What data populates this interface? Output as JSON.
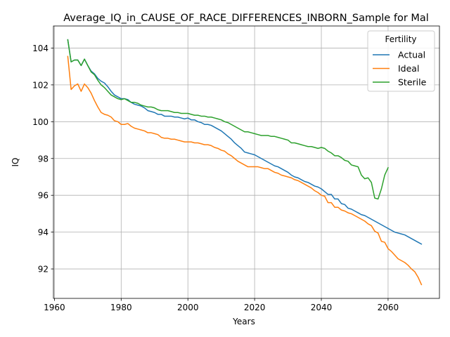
{
  "chart_data": {
    "type": "line",
    "title": "Average_IQ_in_CAUSE_OF_RACE_DIFFERENCES_INBORN_Sample for Mal",
    "xlabel": "Years",
    "ylabel": "IQ",
    "xlim": [
      1959.7,
      2075.4
    ],
    "ylim": [
      90.4,
      105.2
    ],
    "xticks": [
      1960,
      1980,
      2000,
      2020,
      2040,
      2060
    ],
    "yticks": [
      92,
      94,
      96,
      98,
      100,
      102,
      104
    ],
    "grid": true,
    "legend": {
      "title": "Fertility",
      "placement": "top-right"
    },
    "series": [
      {
        "name": "Actual",
        "color": "#1f77b4",
        "x": [
          1964,
          1965,
          1966,
          1967,
          1968,
          1969,
          1970,
          1971,
          1972,
          1973,
          1974,
          1975,
          1976,
          1977,
          1978,
          1979,
          1980,
          1981,
          1982,
          1983,
          1984,
          1985,
          1986,
          1987,
          1988,
          1989,
          1990,
          1991,
          1992,
          1993,
          1994,
          1995,
          1996,
          1997,
          1998,
          1999,
          2000,
          2001,
          2002,
          2003,
          2004,
          2005,
          2006,
          2007,
          2008,
          2009,
          2010,
          2011,
          2012,
          2013,
          2014,
          2015,
          2016,
          2017,
          2018,
          2019,
          2020,
          2021,
          2022,
          2023,
          2024,
          2025,
          2026,
          2027,
          2028,
          2029,
          2030,
          2031,
          2032,
          2033,
          2034,
          2035,
          2036,
          2037,
          2038,
          2039,
          2040,
          2041,
          2042,
          2043,
          2044,
          2045,
          2046,
          2047,
          2048,
          2049,
          2050,
          2051,
          2052,
          2053,
          2054,
          2055,
          2056,
          2057,
          2058,
          2059,
          2060,
          2061,
          2062,
          2063,
          2064,
          2065,
          2066,
          2067,
          2068,
          2069,
          2070
        ],
        "values": [
          104.45,
          103.25,
          103.35,
          103.35,
          103.05,
          103.4,
          103.05,
          102.75,
          102.6,
          102.35,
          102.2,
          102.1,
          101.9,
          101.65,
          101.45,
          101.35,
          101.25,
          101.25,
          101.2,
          101.05,
          100.95,
          100.9,
          100.85,
          100.75,
          100.6,
          100.55,
          100.5,
          100.4,
          100.4,
          100.3,
          100.3,
          100.3,
          100.25,
          100.25,
          100.2,
          100.15,
          100.2,
          100.1,
          100.1,
          100.0,
          99.95,
          99.85,
          99.85,
          99.8,
          99.7,
          99.6,
          99.5,
          99.35,
          99.2,
          99.05,
          98.85,
          98.7,
          98.55,
          98.35,
          98.3,
          98.25,
          98.2,
          98.1,
          98.0,
          97.9,
          97.8,
          97.7,
          97.6,
          97.55,
          97.45,
          97.35,
          97.25,
          97.1,
          97.0,
          96.95,
          96.85,
          96.75,
          96.7,
          96.6,
          96.5,
          96.45,
          96.35,
          96.2,
          96.05,
          96.05,
          95.8,
          95.8,
          95.55,
          95.5,
          95.3,
          95.25,
          95.15,
          95.05,
          94.95,
          94.9,
          94.8,
          94.7,
          94.6,
          94.5,
          94.4,
          94.3,
          94.2,
          94.1,
          94.0,
          93.95,
          93.9,
          93.85,
          93.75,
          93.65,
          93.55,
          93.45,
          93.35
        ]
      },
      {
        "name": "Ideal",
        "color": "#ff7f0e",
        "x": [
          1964,
          1965,
          1966,
          1967,
          1968,
          1969,
          1970,
          1971,
          1972,
          1973,
          1974,
          1975,
          1976,
          1977,
          1978,
          1979,
          1980,
          1981,
          1982,
          1983,
          1984,
          1985,
          1986,
          1987,
          1988,
          1989,
          1990,
          1991,
          1992,
          1993,
          1994,
          1995,
          1996,
          1997,
          1998,
          1999,
          2000,
          2001,
          2002,
          2003,
          2004,
          2005,
          2006,
          2007,
          2008,
          2009,
          2010,
          2011,
          2012,
          2013,
          2014,
          2015,
          2016,
          2017,
          2018,
          2019,
          2020,
          2021,
          2022,
          2023,
          2024,
          2025,
          2026,
          2027,
          2028,
          2029,
          2030,
          2031,
          2032,
          2033,
          2034,
          2035,
          2036,
          2037,
          2038,
          2039,
          2040,
          2041,
          2042,
          2043,
          2044,
          2045,
          2046,
          2047,
          2048,
          2049,
          2050,
          2051,
          2052,
          2053,
          2054,
          2055,
          2056,
          2057,
          2058,
          2059,
          2060,
          2061,
          2062,
          2063,
          2064,
          2065,
          2066,
          2067,
          2068,
          2069,
          2070
        ],
        "values": [
          103.55,
          101.75,
          101.95,
          102.05,
          101.65,
          102.05,
          101.85,
          101.55,
          101.15,
          100.8,
          100.5,
          100.4,
          100.35,
          100.25,
          100.05,
          100.0,
          99.85,
          99.85,
          99.9,
          99.75,
          99.65,
          99.6,
          99.55,
          99.5,
          99.4,
          99.4,
          99.35,
          99.3,
          99.15,
          99.1,
          99.1,
          99.05,
          99.05,
          99.0,
          98.95,
          98.9,
          98.9,
          98.9,
          98.85,
          98.85,
          98.8,
          98.75,
          98.75,
          98.7,
          98.6,
          98.55,
          98.45,
          98.4,
          98.25,
          98.15,
          98.0,
          97.85,
          97.75,
          97.65,
          97.55,
          97.55,
          97.55,
          97.55,
          97.5,
          97.45,
          97.45,
          97.35,
          97.25,
          97.2,
          97.1,
          97.05,
          97.0,
          96.95,
          96.85,
          96.8,
          96.7,
          96.6,
          96.5,
          96.4,
          96.25,
          96.15,
          96.0,
          95.95,
          95.6,
          95.6,
          95.35,
          95.35,
          95.2,
          95.15,
          95.05,
          95.0,
          94.9,
          94.8,
          94.7,
          94.6,
          94.45,
          94.35,
          94.05,
          93.95,
          93.5,
          93.45,
          93.1,
          92.95,
          92.75,
          92.55,
          92.45,
          92.35,
          92.2,
          92.0,
          91.85,
          91.55,
          91.15
        ]
      },
      {
        "name": "Sterile",
        "color": "#2ca02c",
        "x": [
          1964,
          1965,
          1966,
          1967,
          1968,
          1969,
          1970,
          1971,
          1972,
          1973,
          1974,
          1975,
          1976,
          1977,
          1978,
          1979,
          1980,
          1981,
          1982,
          1983,
          1984,
          1985,
          1986,
          1987,
          1988,
          1989,
          1990,
          1991,
          1992,
          1993,
          1994,
          1995,
          1996,
          1997,
          1998,
          1999,
          2000,
          2001,
          2002,
          2003,
          2004,
          2005,
          2006,
          2007,
          2008,
          2009,
          2010,
          2011,
          2012,
          2013,
          2014,
          2015,
          2016,
          2017,
          2018,
          2019,
          2020,
          2021,
          2022,
          2023,
          2024,
          2025,
          2026,
          2027,
          2028,
          2029,
          2030,
          2031,
          2032,
          2033,
          2034,
          2035,
          2036,
          2037,
          2038,
          2039,
          2040,
          2041,
          2042,
          2043,
          2044,
          2045,
          2046,
          2047,
          2048,
          2049,
          2050,
          2051,
          2052,
          2053,
          2054,
          2055,
          2056,
          2057,
          2058,
          2059,
          2060
        ],
        "values": [
          104.45,
          103.25,
          103.35,
          103.35,
          103.05,
          103.4,
          103.05,
          102.7,
          102.55,
          102.25,
          102.0,
          101.85,
          101.65,
          101.45,
          101.35,
          101.25,
          101.2,
          101.25,
          101.15,
          101.05,
          101.05,
          101.0,
          100.9,
          100.85,
          100.8,
          100.8,
          100.75,
          100.65,
          100.6,
          100.6,
          100.6,
          100.55,
          100.5,
          100.5,
          100.45,
          100.45,
          100.45,
          100.4,
          100.35,
          100.35,
          100.3,
          100.3,
          100.25,
          100.25,
          100.2,
          100.15,
          100.1,
          100.0,
          99.95,
          99.85,
          99.75,
          99.65,
          99.55,
          99.45,
          99.45,
          99.4,
          99.35,
          99.3,
          99.25,
          99.25,
          99.25,
          99.2,
          99.2,
          99.15,
          99.1,
          99.05,
          99.0,
          98.85,
          98.85,
          98.8,
          98.75,
          98.7,
          98.65,
          98.65,
          98.6,
          98.55,
          98.6,
          98.55,
          98.4,
          98.3,
          98.15,
          98.15,
          98.05,
          97.9,
          97.85,
          97.65,
          97.6,
          97.55,
          97.1,
          96.9,
          96.95,
          96.7,
          95.85,
          95.8,
          96.35,
          97.1,
          97.5
        ]
      }
    ]
  }
}
